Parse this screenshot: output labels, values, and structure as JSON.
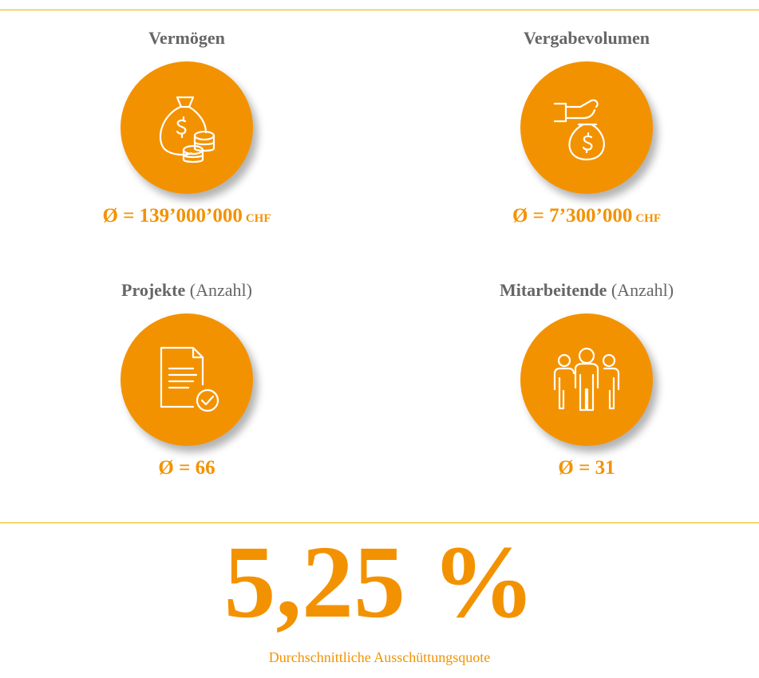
{
  "items": [
    {
      "title": "Vermögen",
      "value": "Ø = 139’000’000",
      "unit": "CHF"
    },
    {
      "title": "Vergabevolumen",
      "value": "Ø = 7’300’000",
      "unit": "CHF"
    },
    {
      "title": "Projekte",
      "note": "(Anzahl)",
      "value": "Ø = 66"
    },
    {
      "title": "Mitarbeitende",
      "note": "(Anzahl)",
      "value": "Ø = 31"
    }
  ],
  "highlight": {
    "value": "5,25 %",
    "label": "Durchschnittliche Ausschüttungsquote"
  }
}
